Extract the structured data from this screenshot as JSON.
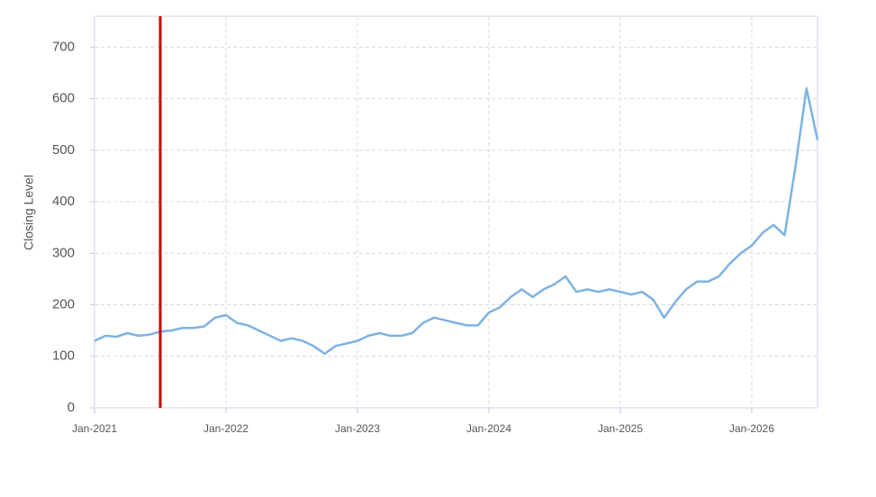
{
  "chart_data": {
    "type": "line",
    "y_label": "Closing Level",
    "color": "#7eb2e4",
    "x": [
      "2021-01",
      "2021-02",
      "2021-03",
      "2021-04",
      "2021-05",
      "2021-06",
      "2021-07",
      "2021-08",
      "2021-09",
      "2021-10",
      "2021-11",
      "2021-12",
      "2022-01",
      "2022-02",
      "2022-03",
      "2022-04",
      "2022-05",
      "2022-06",
      "2022-07",
      "2022-08",
      "2022-09",
      "2022-10",
      "2022-11",
      "2022-12",
      "2023-01",
      "2023-02",
      "2023-03",
      "2023-04",
      "2023-05",
      "2023-06",
      "2023-07",
      "2023-08",
      "2023-09",
      "2023-10",
      "2023-11",
      "2023-12",
      "2024-01",
      "2024-02",
      "2024-03",
      "2024-04",
      "2024-05",
      "2024-06",
      "2024-07",
      "2024-08",
      "2024-09",
      "2024-10",
      "2024-11",
      "2024-12",
      "2025-01",
      "2025-02",
      "2025-03",
      "2025-04",
      "2025-05",
      "2025-06",
      "2025-07",
      "2025-08",
      "2025-09",
      "2025-10",
      "2025-11",
      "2025-12",
      "2026-01",
      "2026-02",
      "2026-03",
      "2026-04",
      "2026-05",
      "2026-06",
      "2026-07"
    ],
    "values": [
      130,
      140,
      138,
      145,
      140,
      142,
      148,
      150,
      155,
      155,
      158,
      175,
      180,
      165,
      160,
      150,
      140,
      130,
      135,
      130,
      120,
      105,
      120,
      125,
      130,
      140,
      145,
      140,
      140,
      145,
      165,
      175,
      170,
      165,
      160,
      160,
      185,
      195,
      215,
      230,
      215,
      230,
      240,
      255,
      225,
      230,
      225,
      230,
      225,
      220,
      225,
      210,
      175,
      205,
      230,
      245,
      245,
      255,
      280,
      300,
      315,
      340,
      355,
      335,
      470,
      620,
      520
    ],
    "xlim": [
      "2021-01",
      "2026-07"
    ],
    "xticks": [
      {
        "value": "2021-01",
        "label": "Jan-2021"
      },
      {
        "value": "2022-01",
        "label": "Jan-2022"
      },
      {
        "value": "2023-01",
        "label": "Jan-2023"
      },
      {
        "value": "2024-01",
        "label": "Jan-2024"
      },
      {
        "value": "2025-01",
        "label": "Jan-2025"
      },
      {
        "value": "2026-01",
        "label": "Jan-2026"
      }
    ],
    "ylim": [
      0,
      760
    ],
    "yticks": [
      0,
      100,
      200,
      300,
      400,
      500,
      600,
      700
    ],
    "grid": true,
    "marker_x": "2021-07",
    "marker_color": "#cc0000"
  }
}
